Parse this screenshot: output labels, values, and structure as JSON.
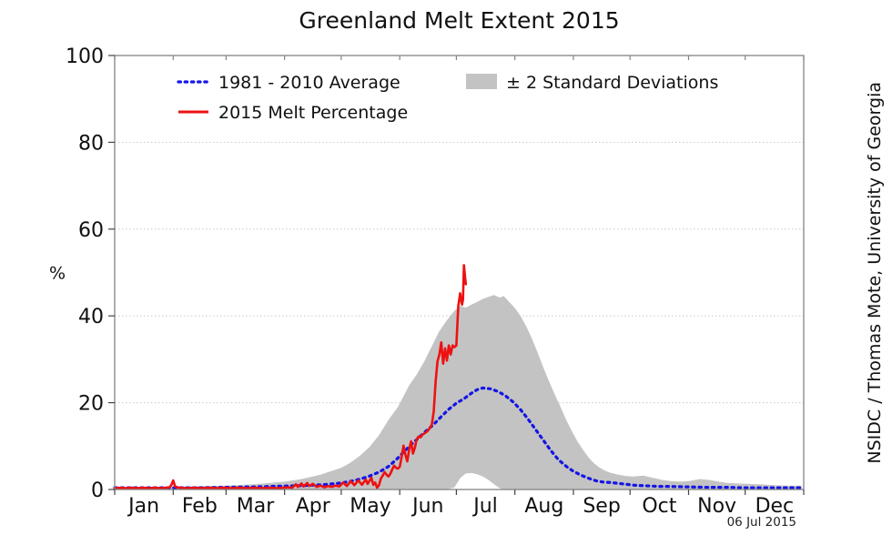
{
  "title": "Greenland Melt Extent 2015",
  "credit": "NSIDC / Thomas Mote, University of Georgia",
  "date_stamp": "06 Jul 2015",
  "chart_data": {
    "type": "line",
    "title": "Greenland Melt Extent 2015",
    "ylabel": "%",
    "ylim": [
      0,
      100
    ],
    "yticks": [
      0,
      20,
      40,
      60,
      80,
      100
    ],
    "grid_y": [
      20,
      40,
      60,
      80
    ],
    "grid_on": true,
    "x_unit": "day_of_year",
    "xlim": [
      1,
      366
    ],
    "month_starts": [
      1,
      32,
      60,
      91,
      121,
      152,
      182,
      213,
      244,
      274,
      305,
      335,
      366
    ],
    "month_labels": [
      "Jan",
      "Feb",
      "Mar",
      "Apr",
      "May",
      "Jun",
      "Jul",
      "Aug",
      "Sep",
      "Oct",
      "Nov",
      "Dec"
    ],
    "legend_position": "upper-left-inside",
    "legend": [
      {
        "label": "1981 - 2010 Average",
        "swatch": "dotted-line",
        "color": "#1515e6"
      },
      {
        "label": "2015 Melt Percentage",
        "swatch": "solid-line",
        "color": "#ee1111"
      },
      {
        "label": "± 2 Standard Deviations",
        "swatch": "patch",
        "color": "#c3c3c3"
      }
    ],
    "band": {
      "name": "± 2 Standard Deviations",
      "color": "#c3c3c3",
      "points": [
        [
          1,
          0.5,
          0
        ],
        [
          20,
          0.6,
          0
        ],
        [
          40,
          0.7,
          0
        ],
        [
          60,
          0.9,
          0
        ],
        [
          75,
          1.2,
          0
        ],
        [
          91,
          1.8,
          0
        ],
        [
          100,
          2.4,
          0
        ],
        [
          110,
          3.4,
          0
        ],
        [
          121,
          5,
          0
        ],
        [
          126,
          6.2,
          0
        ],
        [
          131,
          7.8,
          0
        ],
        [
          136,
          9.8,
          0
        ],
        [
          141,
          12.5,
          0
        ],
        [
          146,
          16,
          0
        ],
        [
          151,
          19,
          0
        ],
        [
          154,
          21.5,
          0
        ],
        [
          157,
          24,
          0
        ],
        [
          161,
          26.5,
          0
        ],
        [
          165,
          29.5,
          0
        ],
        [
          169,
          33,
          0
        ],
        [
          173,
          36.5,
          0
        ],
        [
          177,
          39,
          0
        ],
        [
          181,
          41.2,
          0.5
        ],
        [
          184,
          42.3,
          2.6
        ],
        [
          187,
          41.9,
          3.7
        ],
        [
          190,
          42.6,
          3.8
        ],
        [
          193,
          43.2,
          3.5
        ],
        [
          196,
          43.9,
          3
        ],
        [
          199,
          44.4,
          2.2
        ],
        [
          202,
          44.8,
          1.2
        ],
        [
          205,
          44.2,
          0.3
        ],
        [
          207,
          44.6,
          0
        ],
        [
          210,
          43.2,
          0
        ],
        [
          213,
          41.8,
          0
        ],
        [
          216,
          40,
          0
        ],
        [
          219,
          37.6,
          0
        ],
        [
          222,
          34.8,
          0
        ],
        [
          225,
          31.6,
          0
        ],
        [
          228,
          28.2,
          0
        ],
        [
          231,
          25,
          0
        ],
        [
          234,
          22,
          0
        ],
        [
          237,
          19.2,
          0
        ],
        [
          240,
          16.2,
          0
        ],
        [
          243,
          13.6,
          0
        ],
        [
          246,
          11.2,
          0
        ],
        [
          249,
          9.2,
          0
        ],
        [
          252,
          7.4,
          0
        ],
        [
          255,
          6,
          0
        ],
        [
          258,
          5,
          0
        ],
        [
          261,
          4.3,
          0
        ],
        [
          264,
          3.8,
          0
        ],
        [
          268,
          3.4,
          0
        ],
        [
          272,
          3.1,
          0
        ],
        [
          276,
          3,
          0
        ],
        [
          281,
          3.2,
          0
        ],
        [
          286,
          2.7,
          0
        ],
        [
          291,
          2.2,
          0
        ],
        [
          296,
          1.9,
          0
        ],
        [
          301,
          1.8,
          0
        ],
        [
          306,
          2,
          0
        ],
        [
          311,
          2.4,
          0
        ],
        [
          316,
          2.2,
          0
        ],
        [
          321,
          1.8,
          0
        ],
        [
          326,
          1.5,
          0
        ],
        [
          331,
          1.4,
          0
        ],
        [
          336,
          1.3,
          0
        ],
        [
          343,
          1.2,
          0
        ],
        [
          350,
          1,
          0
        ],
        [
          357,
          0.9,
          0
        ],
        [
          365,
          0.9,
          0
        ]
      ]
    },
    "series": [
      {
        "name": "1981 - 2010 Average",
        "style": "dotted",
        "color": "#1515e6",
        "points": [
          [
            1,
            0.4
          ],
          [
            15,
            0.4
          ],
          [
            32,
            0.4
          ],
          [
            46,
            0.4
          ],
          [
            60,
            0.5
          ],
          [
            75,
            0.6
          ],
          [
            91,
            0.8
          ],
          [
            101,
            0.9
          ],
          [
            111,
            1.1
          ],
          [
            121,
            1.5
          ],
          [
            126,
            1.9
          ],
          [
            131,
            2.4
          ],
          [
            136,
            3.1
          ],
          [
            141,
            4.0
          ],
          [
            146,
            5.3
          ],
          [
            150,
            6.8
          ],
          [
            154,
            8.6
          ],
          [
            158,
            10.3
          ],
          [
            162,
            11.9
          ],
          [
            166,
            13.5
          ],
          [
            170,
            15.0
          ],
          [
            174,
            16.8
          ],
          [
            178,
            18.5
          ],
          [
            182,
            19.9
          ],
          [
            186,
            20.9
          ],
          [
            190,
            22.2
          ],
          [
            193,
            23.0
          ],
          [
            196,
            23.4
          ],
          [
            200,
            23.2
          ],
          [
            204,
            22.6
          ],
          [
            208,
            21.6
          ],
          [
            212,
            20.2
          ],
          [
            216,
            18.4
          ],
          [
            220,
            16.2
          ],
          [
            224,
            13.8
          ],
          [
            228,
            11.4
          ],
          [
            232,
            9.0
          ],
          [
            236,
            6.9
          ],
          [
            240,
            5.4
          ],
          [
            244,
            4.2
          ],
          [
            248,
            3.3
          ],
          [
            252,
            2.6
          ],
          [
            256,
            2.0
          ],
          [
            260,
            1.7
          ],
          [
            264,
            1.6
          ],
          [
            268,
            1.4
          ],
          [
            272,
            1.2
          ],
          [
            276,
            1.0
          ],
          [
            280,
            0.9
          ],
          [
            285,
            0.8
          ],
          [
            290,
            0.7
          ],
          [
            295,
            0.7
          ],
          [
            305,
            0.6
          ],
          [
            315,
            0.5
          ],
          [
            325,
            0.5
          ],
          [
            335,
            0.4
          ],
          [
            345,
            0.4
          ],
          [
            355,
            0.4
          ],
          [
            365,
            0.4
          ]
        ]
      },
      {
        "name": "2015 Melt Percentage",
        "style": "solid",
        "color": "#ee1111",
        "points": [
          [
            1,
            0.3
          ],
          [
            4,
            0.4
          ],
          [
            7,
            0.3
          ],
          [
            10,
            0.4
          ],
          [
            13,
            0.3
          ],
          [
            16,
            0.4
          ],
          [
            19,
            0.3
          ],
          [
            22,
            0.4
          ],
          [
            25,
            0.3
          ],
          [
            28,
            0.4
          ],
          [
            30,
            0.5
          ],
          [
            31,
            1.0
          ],
          [
            32,
            2.1
          ],
          [
            33,
            0.7
          ],
          [
            35,
            0.4
          ],
          [
            39,
            0.3
          ],
          [
            43,
            0.4
          ],
          [
            47,
            0.3
          ],
          [
            51,
            0.4
          ],
          [
            55,
            0.3
          ],
          [
            59,
            0.4
          ],
          [
            63,
            0.3
          ],
          [
            67,
            0.4
          ],
          [
            71,
            0.3
          ],
          [
            75,
            0.4
          ],
          [
            79,
            0.3
          ],
          [
            83,
            0.4
          ],
          [
            87,
            0.3
          ],
          [
            90,
            0.4
          ],
          [
            93,
            0.5
          ],
          [
            95,
            0.4
          ],
          [
            97,
            1.2
          ],
          [
            98,
            0.6
          ],
          [
            100,
            1.4
          ],
          [
            101,
            0.7
          ],
          [
            103,
            1.5
          ],
          [
            104,
            0.8
          ],
          [
            106,
            1.3
          ],
          [
            108,
            0.6
          ],
          [
            110,
            0.9
          ],
          [
            112,
            0.5
          ],
          [
            114,
            0.8
          ],
          [
            116,
            0.6
          ],
          [
            118,
            0.9
          ],
          [
            120,
            0.7
          ],
          [
            122,
            1.6
          ],
          [
            124,
            0.8
          ],
          [
            126,
            1.9
          ],
          [
            128,
            1.0
          ],
          [
            130,
            2.1
          ],
          [
            132,
            1.1
          ],
          [
            134,
            2.3
          ],
          [
            135,
            1.3
          ],
          [
            137,
            2.7
          ],
          [
            138,
            1.1
          ],
          [
            139,
            1.6
          ],
          [
            140,
            0.4
          ],
          [
            141,
            1.0
          ],
          [
            142,
            2.5
          ],
          [
            143,
            3.2
          ],
          [
            144,
            4.0
          ],
          [
            145,
            3.4
          ],
          [
            146,
            3.0
          ],
          [
            147,
            3.6
          ],
          [
            148,
            4.6
          ],
          [
            149,
            5.5
          ],
          [
            150,
            5.0
          ],
          [
            151,
            4.8
          ],
          [
            152,
            5.2
          ],
          [
            153,
            7.5
          ],
          [
            154,
            10.1
          ],
          [
            155,
            8.0
          ],
          [
            156,
            6.5
          ],
          [
            157,
            9.2
          ],
          [
            158,
            11.1
          ],
          [
            159,
            8.3
          ],
          [
            160,
            9.6
          ],
          [
            161,
            11.6
          ],
          [
            162,
            12.2
          ],
          [
            163,
            12.0
          ],
          [
            164,
            12.6
          ],
          [
            165,
            12.9
          ],
          [
            166,
            13.2
          ],
          [
            167,
            13.6
          ],
          [
            168,
            14.2
          ],
          [
            169,
            15.0
          ],
          [
            170,
            17.9
          ],
          [
            171,
            24.8
          ],
          [
            172,
            29.5
          ],
          [
            173,
            31.1
          ],
          [
            174,
            33.9
          ],
          [
            175,
            29.0
          ],
          [
            176,
            32.5
          ],
          [
            177,
            29.7
          ],
          [
            178,
            33.2
          ],
          [
            179,
            31.1
          ],
          [
            180,
            33.2
          ],
          [
            181,
            32.8
          ],
          [
            182,
            33.2
          ],
          [
            183,
            42.2
          ],
          [
            184,
            45.2
          ],
          [
            185,
            42.6
          ],
          [
            185.5,
            43.7
          ],
          [
            186,
            51.7
          ],
          [
            186.6,
            49.0
          ],
          [
            187,
            47.3
          ]
        ]
      }
    ]
  }
}
